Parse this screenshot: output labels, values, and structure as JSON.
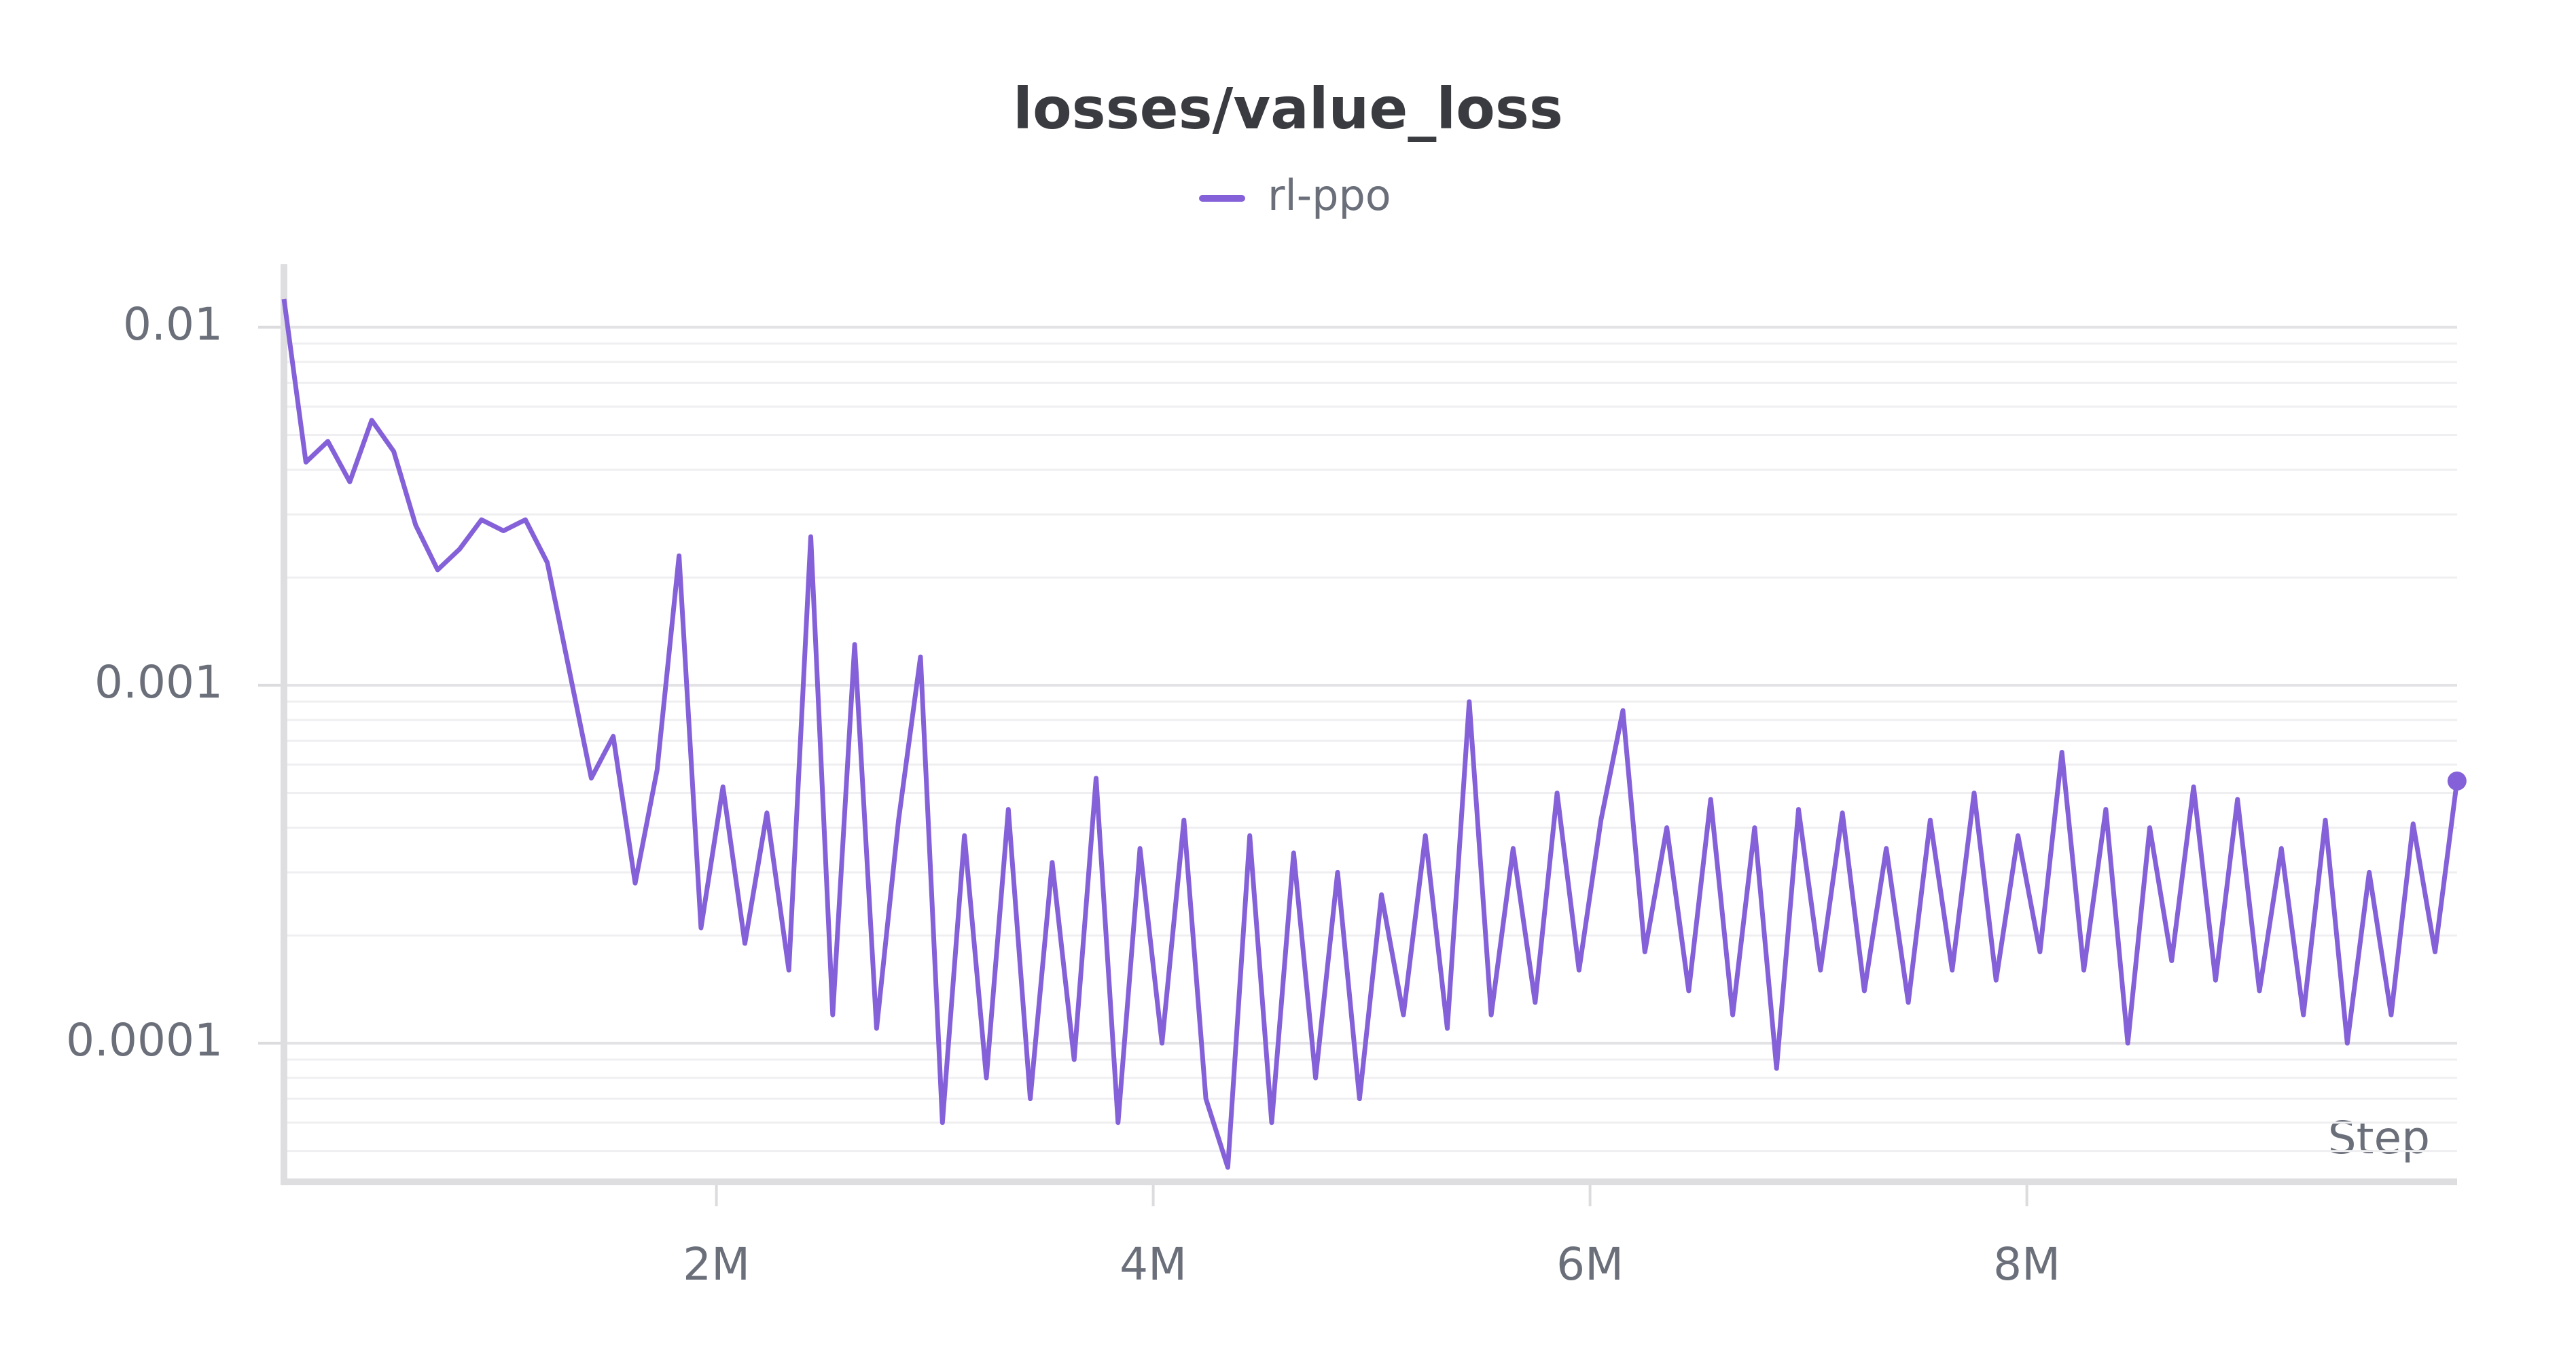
{
  "chart_data": {
    "type": "line",
    "title": "losses/value_loss",
    "x_label": "Step",
    "log_y": true,
    "grid": true,
    "legend": "top",
    "x": [
      20000,
      120500,
      221000,
      321500,
      422000,
      522500,
      623000,
      723500,
      824000,
      924500,
      1025000,
      1125500,
      1226000,
      1326500,
      1427000,
      1527500,
      1628000,
      1728500,
      1829000,
      1929500,
      2030000,
      2130500,
      2231000,
      2331500,
      2432000,
      2532500,
      2633000,
      2733500,
      2834000,
      2934500,
      3035000,
      3135500,
      3236000,
      3336500,
      3437000,
      3537500,
      3638000,
      3738500,
      3839000,
      3939500,
      4040000,
      4140500,
      4241000,
      4341500,
      4442000,
      4542500,
      4643000,
      4743500,
      4844000,
      4944500,
      5045000,
      5145500,
      5246000,
      5346500,
      5447000,
      5547500,
      5648000,
      5748500,
      5849000,
      5949500,
      6050000,
      6150500,
      6251000,
      6351500,
      6452000,
      6552500,
      6653000,
      6753500,
      6854000,
      6954500,
      7055000,
      7155500,
      7256000,
      7356500,
      7457000,
      7557500,
      7658000,
      7758500,
      7859000,
      7959500,
      8060000,
      8160500,
      8261000,
      8361500,
      8462000,
      8562500,
      8663000,
      8763500,
      8864000,
      8964500,
      9065000,
      9165500,
      9266000,
      9366500,
      9467000,
      9567500,
      9668000,
      9768500,
      9869000,
      9969500
    ],
    "series": [
      {
        "name": "rl-ppo",
        "color": "#8561d9",
        "values": [
          0.012,
          0.0042,
          0.0048,
          0.0037,
          0.0055,
          0.0045,
          0.0028,
          0.0021,
          0.0024,
          0.0029,
          0.0027,
          0.0029,
          0.0022,
          0.0011,
          0.00055,
          0.00072,
          0.00028,
          0.00058,
          0.0023,
          0.00021,
          0.00052,
          0.00019,
          0.00044,
          0.00016,
          0.0026,
          0.00012,
          0.0013,
          0.00011,
          0.00042,
          0.0012,
          6e-05,
          0.00038,
          8e-05,
          0.00045,
          7e-05,
          0.00032,
          9e-05,
          0.00055,
          6e-05,
          0.00035,
          0.0001,
          0.00042,
          7e-05,
          4.5e-05,
          0.00038,
          6e-05,
          0.00034,
          8e-05,
          0.0003,
          7e-05,
          0.00026,
          0.00012,
          0.00038,
          0.00011,
          0.0009,
          0.00012,
          0.00035,
          0.00013,
          0.0005,
          0.00016,
          0.00042,
          0.00085,
          0.00018,
          0.0004,
          0.00014,
          0.00048,
          0.00012,
          0.0004,
          8.5e-05,
          0.00045,
          0.00016,
          0.00044,
          0.00014,
          0.00035,
          0.00013,
          0.00042,
          0.00016,
          0.0005,
          0.00015,
          0.00038,
          0.00018,
          0.00065,
          0.00016,
          0.00045,
          0.0001,
          0.0004,
          0.00017,
          0.00052,
          0.00015,
          0.00048,
          0.00014,
          0.00035,
          0.00012,
          0.00042,
          0.0001,
          0.0003,
          0.00012,
          0.00041,
          0.00018,
          0.00054
        ]
      }
    ],
    "xlim": [
      20000,
      9970000
    ],
    "xticks": [
      {
        "value": 2000000,
        "label": "2M"
      },
      {
        "value": 4000000,
        "label": "4M"
      },
      {
        "value": 6000000,
        "label": "6M"
      },
      {
        "value": 8000000,
        "label": "8M"
      }
    ],
    "ylim": [
      4.1e-05,
      0.015
    ],
    "yticks": [
      0.01,
      0.001,
      0.0001
    ],
    "yminorticks": [
      5e-05,
      6e-05,
      7e-05,
      8e-05,
      9e-05,
      0.0002,
      0.0003,
      0.0004,
      0.0005,
      0.0006,
      0.0007,
      0.0008,
      0.0009,
      0.002,
      0.003,
      0.004,
      0.005,
      0.006,
      0.007,
      0.008,
      0.009
    ]
  }
}
